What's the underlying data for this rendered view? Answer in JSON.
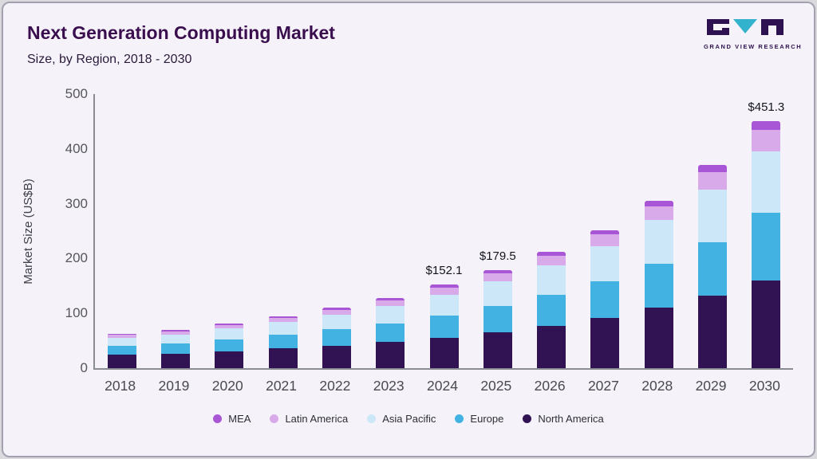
{
  "header": {
    "title": "Next Generation Computing Market",
    "subtitle": "Size, by Region, 2018 - 2030",
    "logo_text": "GRAND VIEW RESEARCH"
  },
  "chart_data": {
    "type": "bar",
    "stacked": true,
    "title": "Next Generation Computing Market Size, by Region, 2018 - 2030",
    "ylabel": "Market Size (US$B)",
    "ylim": [
      0,
      500
    ],
    "yticks": [
      0,
      100,
      200,
      300,
      400,
      500
    ],
    "grid": false,
    "legend_position": "bottom",
    "categories": [
      "2018",
      "2019",
      "2020",
      "2021",
      "2022",
      "2023",
      "2024",
      "2025",
      "2026",
      "2027",
      "2028",
      "2029",
      "2030"
    ],
    "series": [
      {
        "name": "North America",
        "color": "#311353",
        "values": [
          24,
          26.5,
          31,
          36,
          41,
          47.5,
          55,
          65,
          77,
          91,
          110,
          132,
          160
        ]
      },
      {
        "name": "Europe",
        "color": "#41b2e2",
        "values": [
          17,
          19,
          22,
          25.5,
          29.5,
          34.5,
          41,
          48,
          56.5,
          67,
          81,
          98,
          123
        ]
      },
      {
        "name": "Asia Pacific",
        "color": "#cbe7f8",
        "values": [
          14,
          16,
          19,
          22.5,
          26.5,
          31.5,
          38,
          45.5,
          54,
          65,
          79,
          96,
          112
        ]
      },
      {
        "name": "Latin America",
        "color": "#d9aaea",
        "values": [
          5.5,
          6,
          7,
          8,
          9.5,
          10.5,
          13,
          15,
          17.5,
          20.5,
          25,
          31,
          40
        ]
      },
      {
        "name": "MEA",
        "color": "#a855d6",
        "values": [
          2.5,
          2.5,
          3,
          3,
          3.5,
          4,
          5.1,
          6,
          7,
          8.5,
          10,
          13,
          16.3
        ]
      }
    ],
    "totals": [
      63,
      70,
      82,
      95,
      110,
      128,
      152.1,
      179.5,
      212,
      252,
      305,
      370,
      451.3
    ],
    "annotations": [
      {
        "category": "2024",
        "label": "$152.1"
      },
      {
        "category": "2025",
        "label": "$179.5"
      },
      {
        "category": "2030",
        "label": "$451.3"
      }
    ],
    "legend": [
      {
        "label": "MEA",
        "color": "#a855d6"
      },
      {
        "label": "Latin America",
        "color": "#d9aaea"
      },
      {
        "label": "Asia Pacific",
        "color": "#cbe7f8"
      },
      {
        "label": "Europe",
        "color": "#41b2e2"
      },
      {
        "label": "North America",
        "color": "#311353"
      }
    ]
  }
}
